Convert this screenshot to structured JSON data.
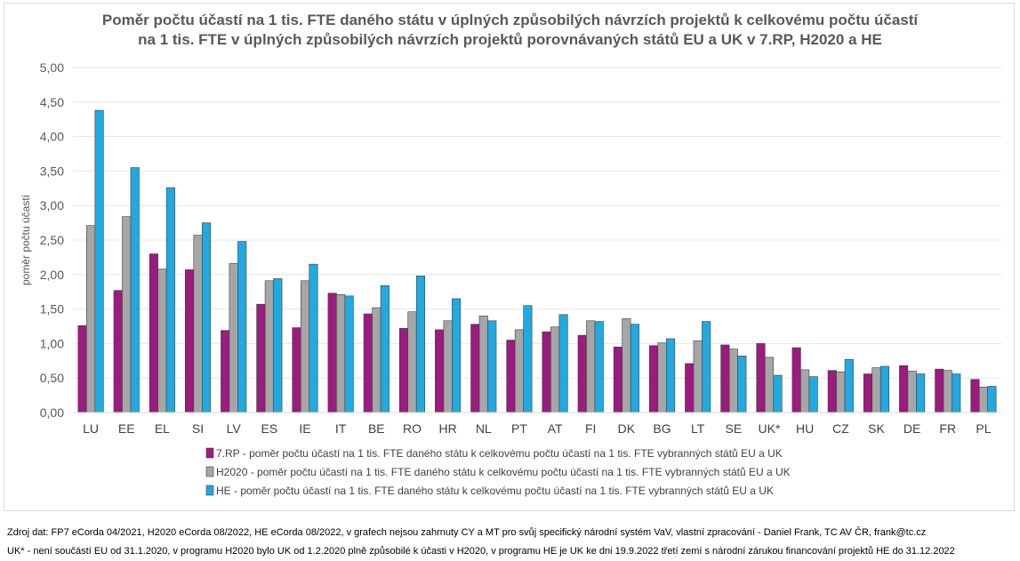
{
  "chart_data": {
    "type": "bar",
    "title": [
      "Poměr počtu účastí na 1 tis. FTE daného státu v úplných způsobilých návrzích projektů k celkovému počtu účastí",
      "na 1 tis. FTE v úplných způsobilých návrzích projektů porovnávaných států EU a UK v 7.RP,  H2020 a HE"
    ],
    "ylabel": "poměr počtu účastí",
    "ylim": [
      0,
      5
    ],
    "yticks": [
      "0,00",
      "0,50",
      "1,00",
      "1,50",
      "2,00",
      "2,50",
      "3,00",
      "3,50",
      "4,00",
      "4,50",
      "5,00"
    ],
    "grid": true,
    "legend_position": "bottom",
    "categories": [
      "LU",
      "EE",
      "EL",
      "SI",
      "LV",
      "ES",
      "IE",
      "IT",
      "BE",
      "RO",
      "HR",
      "NL",
      "PT",
      "AT",
      "FI",
      "DK",
      "BG",
      "LT",
      "SE",
      "UK*",
      "HU",
      "CZ",
      "SK",
      "DE",
      "FR",
      "PL"
    ],
    "series": [
      {
        "name": "7.RP - poměr počtu účastí na 1 tis. FTE daného státu k celkovému počtu účastí na 1 tis. FTE vybranných států EU a UK",
        "color": "#9b1b7e",
        "values": [
          1.26,
          1.77,
          2.3,
          2.07,
          1.19,
          1.57,
          1.23,
          1.73,
          1.43,
          1.22,
          1.2,
          1.28,
          1.05,
          1.17,
          1.12,
          0.95,
          0.97,
          0.71,
          0.98,
          1.0,
          0.94,
          0.61,
          0.56,
          0.68,
          0.63,
          0.48
        ]
      },
      {
        "name": "H2020 - poměr počtu účastí na 1 tis. FTE daného státu k celkovému počtu účastí na 1 tis. FTE vybranných států EU a UK",
        "color": "#a6a6a6",
        "values": [
          2.71,
          2.84,
          2.08,
          2.57,
          2.16,
          1.91,
          1.91,
          1.71,
          1.52,
          1.46,
          1.33,
          1.4,
          1.2,
          1.24,
          1.33,
          1.36,
          1.01,
          1.04,
          0.92,
          0.8,
          0.62,
          0.59,
          0.65,
          0.6,
          0.61,
          0.37
        ]
      },
      {
        "name": "HE - poměr počtu účastí na 1 tis. FTE daného státu k celkovému počtu účastí na 1 tis. FTE vybranných států EU a UK",
        "color": "#21a9e1",
        "values": [
          4.38,
          3.55,
          3.26,
          2.75,
          2.48,
          1.94,
          2.15,
          1.69,
          1.84,
          1.98,
          1.65,
          1.33,
          1.55,
          1.42,
          1.32,
          1.28,
          1.07,
          1.32,
          0.82,
          0.54,
          0.52,
          0.77,
          0.67,
          0.56,
          0.56,
          0.38
        ]
      }
    ]
  },
  "notes": {
    "source": "Zdroj dat: FP7 eCorda 04/2021, H2020 eCorda 08/2022, HE eCorda 08/2022,  v grafech nejsou zahrnuty CY a MT pro svůj specifický národní systém VaV, vlastní zpracování - Daniel Frank, TC AV ČR, frank@tc.cz",
    "uk": "UK*  - není součástí EU od 31.1.2020, v programu H2020 bylo UK od 1.2.2020 plně způsobilé k účasti v H2020, v programu HE je UK ke dni 19.9.2022 třetí zemí s národní zárukou financování projektů HE do 31.12.2022"
  }
}
